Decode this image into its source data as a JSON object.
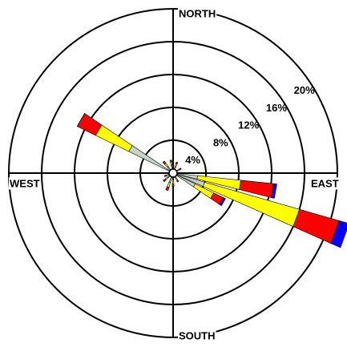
{
  "chart_data": {
    "type": "windrose",
    "direction_labels": {
      "north": "NORTH",
      "east": "EAST",
      "south": "SOUTH",
      "west": "WEST"
    },
    "x": [
      20,
      60,
      100,
      110,
      120,
      150,
      180,
      200,
      230,
      250,
      300,
      320,
      350
    ],
    "series": [
      {
        "color": "#c8d4c8",
        "values": [
          0.8,
          0.6,
          3,
          4,
          3,
          0.7,
          0.8,
          1.2,
          0.8,
          0.6,
          6,
          1,
          1
        ]
      },
      {
        "color": "#ffff00",
        "values": [
          0.4,
          0.3,
          5.3,
          12,
          2.5,
          0.3,
          0.5,
          0.6,
          0.4,
          0.3,
          4.5,
          0.5,
          0.4
        ]
      },
      {
        "color": "#ff0000",
        "values": [
          0.2,
          0.2,
          4,
          5,
          1.3,
          0.2,
          0.3,
          0.4,
          0.3,
          0.2,
          2.5,
          0.3,
          0.2
        ]
      },
      {
        "color": "#0000ff",
        "values": [
          0,
          0,
          0.4,
          1.3,
          0.3,
          0,
          0,
          0,
          0,
          0,
          0,
          0,
          0
        ]
      }
    ],
    "rlim": [
      0,
      20
    ],
    "rticks": [
      {
        "value": 4,
        "label": "4%"
      },
      {
        "value": 8,
        "label": "8%"
      },
      {
        "value": 12,
        "label": "12%"
      },
      {
        "value": 16,
        "label": "16%"
      },
      {
        "value": 20,
        "label": "20%"
      }
    ]
  }
}
